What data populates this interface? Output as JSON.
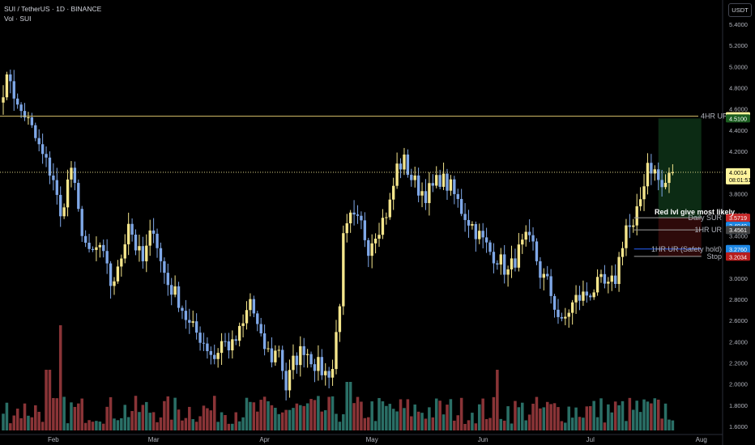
{
  "header": {
    "title": "SUI / TetherUS · 1D · BINANCE",
    "indicator": "Vol · SUI"
  },
  "currency_label": "USDT",
  "colors": {
    "background": "#000000",
    "bull": "#f5e68c",
    "bear": "#7fa8e8",
    "vol_bull": "#2a6f66",
    "vol_bear": "#8a3437",
    "tp_zone": "#0c2b14",
    "sl_zone": "#2e0a0a",
    "line_4hr": "#d9c36b",
    "current_price": "#fff59d"
  },
  "chart_data": {
    "type": "candlestick",
    "x_start": "2025-01-18",
    "x_end": "2025-08-04",
    "ylim": [
      1.6,
      5.54
    ],
    "y_ticks": [
      "5.4000",
      "5.2000",
      "5.0000",
      "4.8000",
      "4.6000",
      "4.4000",
      "4.2000",
      "4.0000",
      "3.8000",
      "3.6000",
      "3.4000",
      "3.2000",
      "3.0000",
      "2.8000",
      "2.6000",
      "2.4000",
      "2.2000",
      "2.0000",
      "1.8000",
      "1.6000"
    ],
    "x_ticks": [
      {
        "label": "Feb",
        "date": "2025-02-01"
      },
      {
        "label": "Mar",
        "date": "2025-03-01"
      },
      {
        "label": "Apr",
        "date": "2025-04-01"
      },
      {
        "label": "May",
        "date": "2025-05-01"
      },
      {
        "label": "Jun",
        "date": "2025-06-01"
      },
      {
        "label": "Jul",
        "date": "2025-07-01"
      },
      {
        "label": "Aug",
        "date": "2025-08-01"
      }
    ],
    "close_anchors": [
      [
        "2025-01-18",
        4.8
      ],
      [
        "2025-01-19",
        4.85
      ],
      [
        "2025-01-20",
        4.9
      ],
      [
        "2025-01-21",
        4.75
      ],
      [
        "2025-01-22",
        4.6
      ],
      [
        "2025-01-24",
        4.55
      ],
      [
        "2025-01-26",
        4.4
      ],
      [
        "2025-01-29",
        4.15
      ],
      [
        "2025-02-01",
        3.95
      ],
      [
        "2025-02-03",
        3.55
      ],
      [
        "2025-02-04",
        3.75
      ],
      [
        "2025-02-06",
        4.05
      ],
      [
        "2025-02-08",
        3.6
      ],
      [
        "2025-02-11",
        3.2
      ],
      [
        "2025-02-14",
        3.3
      ],
      [
        "2025-02-17",
        2.95
      ],
      [
        "2025-02-19",
        3.05
      ],
      [
        "2025-02-22",
        3.55
      ],
      [
        "2025-02-24",
        3.3
      ],
      [
        "2025-02-26",
        3.15
      ],
      [
        "2025-03-01",
        3.5
      ],
      [
        "2025-03-03",
        3.15
      ],
      [
        "2025-03-05",
        2.95
      ],
      [
        "2025-03-08",
        2.8
      ],
      [
        "2025-03-11",
        2.55
      ],
      [
        "2025-03-14",
        2.45
      ],
      [
        "2025-03-16",
        2.35
      ],
      [
        "2025-03-18",
        2.25
      ],
      [
        "2025-03-20",
        2.4
      ],
      [
        "2025-03-23",
        2.35
      ],
      [
        "2025-03-26",
        2.55
      ],
      [
        "2025-03-28",
        2.8
      ],
      [
        "2025-03-31",
        2.4
      ],
      [
        "2025-04-03",
        2.25
      ],
      [
        "2025-04-05",
        2.35
      ],
      [
        "2025-04-07",
        1.96
      ],
      [
        "2025-04-09",
        2.2
      ],
      [
        "2025-04-12",
        2.35
      ],
      [
        "2025-04-15",
        2.2
      ],
      [
        "2025-04-18",
        2.1
      ],
      [
        "2025-04-20",
        2.15
      ],
      [
        "2025-04-22",
        2.8
      ],
      [
        "2025-04-23",
        3.35
      ],
      [
        "2025-04-25",
        3.55
      ],
      [
        "2025-04-28",
        3.5
      ],
      [
        "2025-04-30",
        3.3
      ],
      [
        "2025-05-02",
        3.45
      ],
      [
        "2025-05-04",
        3.55
      ],
      [
        "2025-05-06",
        3.7
      ],
      [
        "2025-05-08",
        4.05
      ],
      [
        "2025-05-10",
        4.1
      ],
      [
        "2025-05-12",
        3.95
      ],
      [
        "2025-05-14",
        3.85
      ],
      [
        "2025-05-16",
        3.8
      ],
      [
        "2025-05-18",
        3.85
      ],
      [
        "2025-05-20",
        3.95
      ],
      [
        "2025-05-23",
        3.85
      ],
      [
        "2025-05-26",
        3.65
      ],
      [
        "2025-05-28",
        3.55
      ],
      [
        "2025-05-31",
        3.4
      ],
      [
        "2025-06-03",
        3.25
      ],
      [
        "2025-06-05",
        3.2
      ],
      [
        "2025-06-08",
        3.05
      ],
      [
        "2025-06-11",
        3.25
      ],
      [
        "2025-06-13",
        3.35
      ],
      [
        "2025-06-15",
        3.3
      ],
      [
        "2025-06-17",
        3.05
      ],
      [
        "2025-06-19",
        2.95
      ],
      [
        "2025-06-21",
        2.75
      ],
      [
        "2025-06-23",
        2.55
      ],
      [
        "2025-06-25",
        2.7
      ],
      [
        "2025-06-27",
        2.8
      ],
      [
        "2025-06-30",
        2.85
      ],
      [
        "2025-07-02",
        2.9
      ],
      [
        "2025-07-04",
        2.95
      ],
      [
        "2025-07-06",
        2.9
      ],
      [
        "2025-07-08",
        3.0
      ],
      [
        "2025-07-10",
        3.35
      ],
      [
        "2025-07-11",
        3.5
      ],
      [
        "2025-07-13",
        3.45
      ],
      [
        "2025-07-15",
        3.75
      ],
      [
        "2025-07-17",
        4.1
      ],
      [
        "2025-07-19",
        4.0
      ],
      [
        "2025-07-21",
        3.85
      ],
      [
        "2025-07-23",
        3.95
      ],
      [
        "2025-07-24",
        4.0
      ]
    ],
    "price_lines": [
      {
        "label": "4HR UR",
        "value": 4.5308,
        "color": "#d9c36b"
      },
      {
        "label": "Daily SUR",
        "value": 3.5719,
        "color": "#9e9e9e"
      },
      {
        "label": "1HR UR",
        "value": 3.4574,
        "color": "#9e9e9e"
      },
      {
        "label": "1HR UR (Safety hold)",
        "value": 3.276,
        "color": "#2962ff"
      },
      {
        "label": "Stop",
        "value": 3.207,
        "color": "#9e9e9e"
      }
    ],
    "price_badges": [
      {
        "text": "4.5308",
        "value": 4.5308,
        "bg": "#fff59d",
        "fg": "#000000"
      },
      {
        "text": "4.5100",
        "value": 4.51,
        "bg": "#1b5e20",
        "fg": "#ffffff"
      },
      {
        "text": "4.0014",
        "value": 4.0014,
        "bg": "#fff59d",
        "fg": "#000000",
        "sub": "08:01:51"
      },
      {
        "text": "3.5719",
        "value": 3.5719,
        "bg": "#c62828",
        "fg": "#ffffff"
      },
      {
        "text": "3.4949",
        "value": 3.4949,
        "bg": "#1e88e5",
        "fg": "#ffffff"
      },
      {
        "text": "3.4574",
        "value": 3.4574,
        "bg": "#1e88e5",
        "fg": "#ffffff"
      },
      {
        "text": "3.4561",
        "value": 3.4561,
        "bg": "#424242",
        "fg": "#ffffff"
      },
      {
        "text": "3.2760",
        "value": 3.276,
        "bg": "#1e88e5",
        "fg": "#ffffff"
      },
      {
        "text": "3.2070",
        "value": 3.207,
        "bg": "#c62828",
        "fg": "#ffffff"
      },
      {
        "text": "3.2034",
        "value": 3.2034,
        "bg": "#b71c1c",
        "fg": "#ffffff"
      }
    ],
    "position": {
      "start": "2025-07-20",
      "end": "2025-08-01",
      "entry": 3.5719,
      "target": 4.51,
      "stop": 3.207
    },
    "current_price": 4.0014,
    "annotation": "Red lvl give most likely"
  }
}
